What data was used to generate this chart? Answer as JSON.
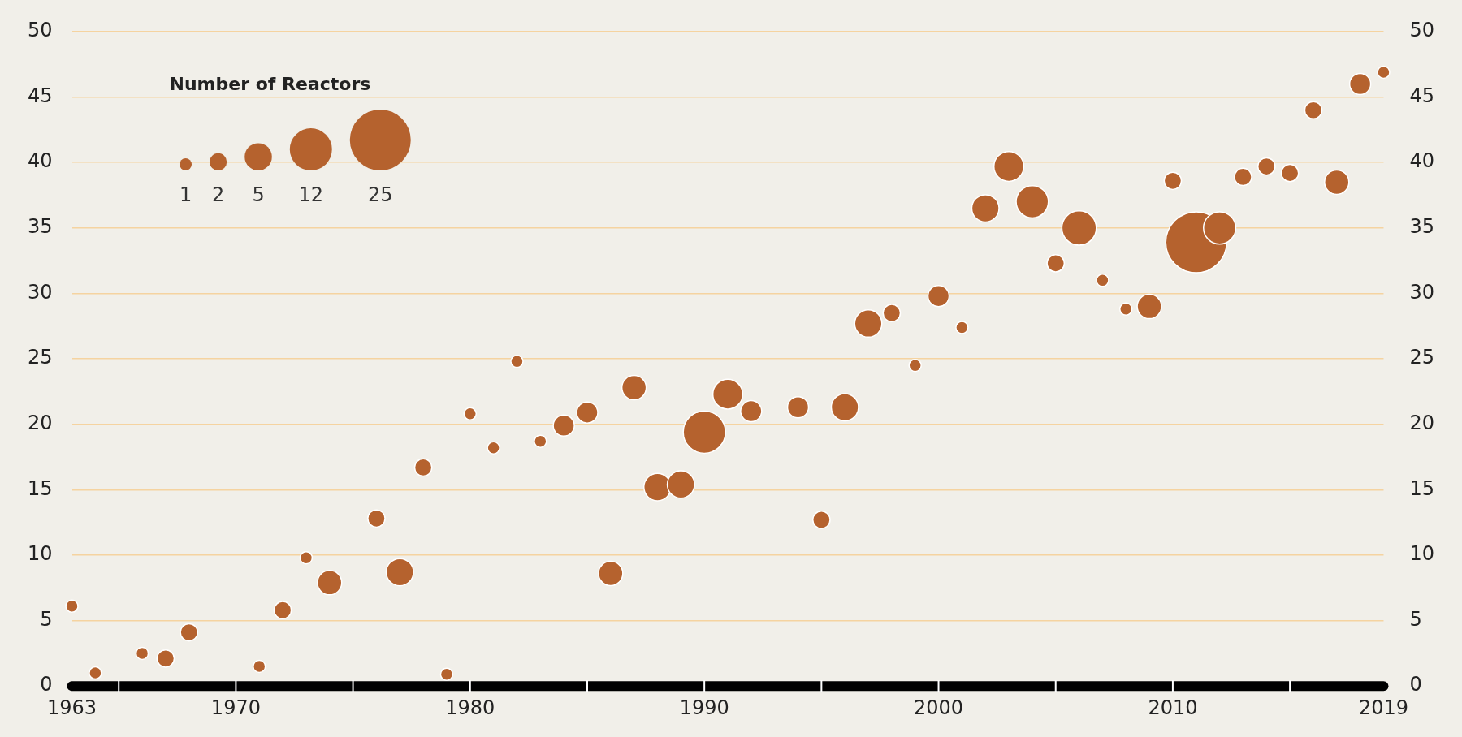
{
  "chart_data": {
    "type": "bubble",
    "legend_title": "Number of Reactors",
    "size_legend": [
      1,
      2,
      5,
      12,
      25
    ],
    "x": [
      1963,
      1964,
      1966,
      1967,
      1968,
      1971,
      1972,
      1973,
      1974,
      1976,
      1977,
      1978,
      1979,
      1980,
      1981,
      1982,
      1983,
      1984,
      1985,
      1986,
      1987,
      1988,
      1989,
      1990,
      1991,
      1992,
      1994,
      1995,
      1996,
      1997,
      1998,
      1999,
      2000,
      2001,
      2002,
      2003,
      2004,
      2005,
      2006,
      2007,
      2008,
      2009,
      2010,
      2011,
      2012,
      2013,
      2014,
      2015,
      2016,
      2017,
      2018,
      2019
    ],
    "values": [
      6.1,
      1.0,
      2.5,
      2.1,
      4.1,
      1.5,
      5.8,
      9.8,
      7.9,
      12.8,
      8.7,
      16.7,
      0.9,
      20.8,
      18.2,
      24.8,
      18.7,
      19.9,
      20.9,
      8.6,
      22.8,
      15.2,
      15.4,
      19.4,
      22.3,
      21.0,
      21.3,
      12.7,
      21.3,
      27.7,
      28.5,
      24.5,
      29.8,
      27.4,
      36.5,
      39.7,
      37.0,
      32.3,
      35.0,
      31.0,
      28.8,
      29.0,
      38.6,
      33.9,
      35.0,
      38.9,
      39.7,
      39.2,
      44.0,
      38.5,
      46.0,
      46.9
    ],
    "sizes": [
      1,
      1,
      1,
      2,
      2,
      1,
      2,
      1,
      4,
      2,
      5,
      2,
      1,
      1,
      1,
      1,
      1,
      3,
      3,
      4,
      4,
      5,
      5,
      12,
      6,
      3,
      3,
      2,
      5,
      5,
      2,
      1,
      3,
      1,
      5,
      6,
      7,
      2,
      8,
      1,
      1,
      4,
      2,
      25,
      7,
      2,
      2,
      2,
      2,
      4,
      3,
      1
    ],
    "color": "#b5622e",
    "xlim": [
      1963,
      2019
    ],
    "xticks": [
      1963,
      {
        "value": 1965,
        "label": null
      },
      1970,
      {
        "value": 1975,
        "label": null
      },
      1980,
      {
        "value": 1985,
        "label": null
      },
      1990,
      {
        "value": 1995,
        "label": null
      },
      2000,
      {
        "value": 2005,
        "label": null
      },
      2010,
      {
        "value": 2015,
        "label": null
      },
      2019
    ],
    "ylim": [
      0,
      50
    ],
    "yticks": [
      0,
      5,
      10,
      15,
      20,
      25,
      30,
      35,
      40,
      45,
      50
    ],
    "y2lim": [
      0,
      50
    ],
    "y2ticks": [
      0,
      5,
      10,
      15,
      20,
      25,
      30,
      35,
      40,
      45,
      50
    ],
    "grid": "y"
  }
}
